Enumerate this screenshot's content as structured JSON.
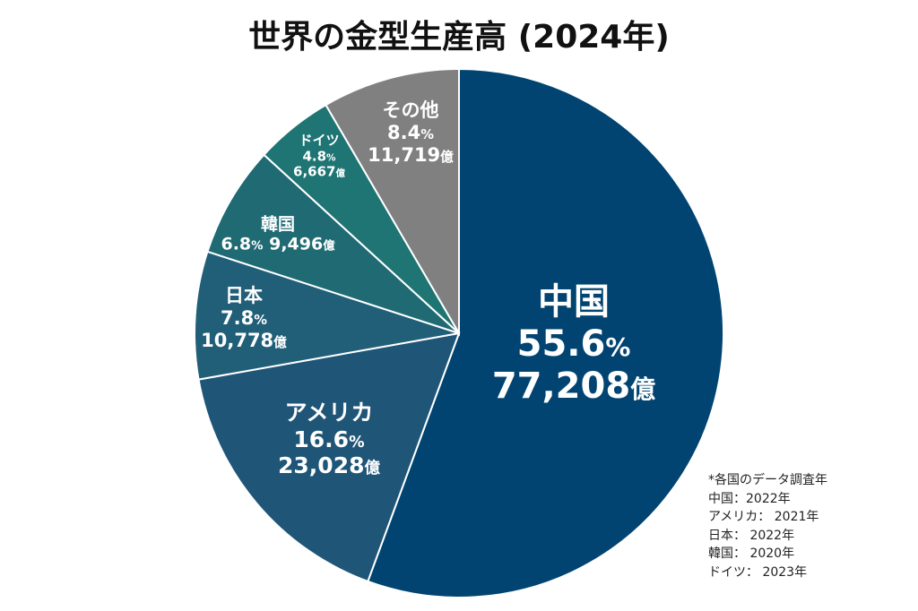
{
  "chart_data": {
    "type": "pie",
    "title": "世界の金型生産高 (2024年)",
    "unit_suffix": "億",
    "percent_suffix": "%",
    "slices": [
      {
        "name": "中国",
        "percent": 55.6,
        "value": "77,208",
        "color": "#014471"
      },
      {
        "name": "アメリカ",
        "percent": 16.6,
        "value": "23,028",
        "color": "#1f5577"
      },
      {
        "name": "日本",
        "percent": 7.8,
        "value": "10,778",
        "color": "#215f78"
      },
      {
        "name": "韓国",
        "percent": 6.8,
        "value": "9,496",
        "color": "#1f6a73"
      },
      {
        "name": "ドイツ",
        "percent": 4.8,
        "value": "6,667",
        "color": "#1e7573"
      },
      {
        "name": "その他",
        "percent": 8.4,
        "value": "11,719",
        "color": "#808080"
      }
    ],
    "start_angle": "12 o'clock",
    "direction": "clockwise"
  },
  "notes": {
    "heading": "*各国のデータ調査年",
    "lines": [
      "中国：2022年",
      "アメリカ： 2021年",
      "日本： 2022年",
      "韓国： 2020年",
      "ドイツ： 2023年"
    ]
  }
}
